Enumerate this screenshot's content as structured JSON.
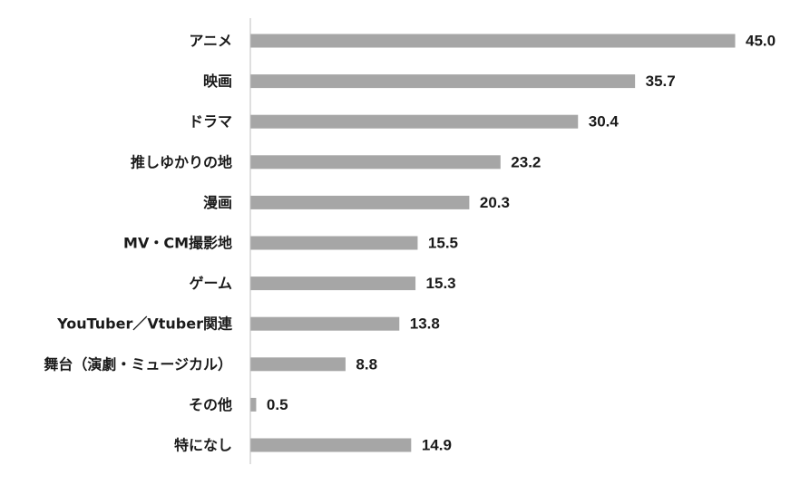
{
  "chart_data": {
    "type": "bar",
    "orientation": "horizontal",
    "categories": [
      "アニメ",
      "映画",
      "ドラマ",
      "推しゆかりの地",
      "漫画",
      "MV・CM撮影地",
      "ゲーム",
      "YouTuber／Vtuber関連",
      "舞台（演劇・ミュージカル）",
      "その他",
      "特になし"
    ],
    "values": [
      45.0,
      35.7,
      30.4,
      23.2,
      20.3,
      15.5,
      15.3,
      13.8,
      8.8,
      0.5,
      14.9
    ],
    "value_labels": [
      "45.0",
      "35.7",
      "30.4",
      "23.2",
      "20.3",
      "15.5",
      "15.3",
      "13.8",
      "8.8",
      "0.5",
      "14.9"
    ],
    "xlim": [
      0,
      45
    ],
    "grid": false,
    "legend": "none",
    "bar_color": "#a6a6a6",
    "axis_color": "#bfbfbf"
  }
}
